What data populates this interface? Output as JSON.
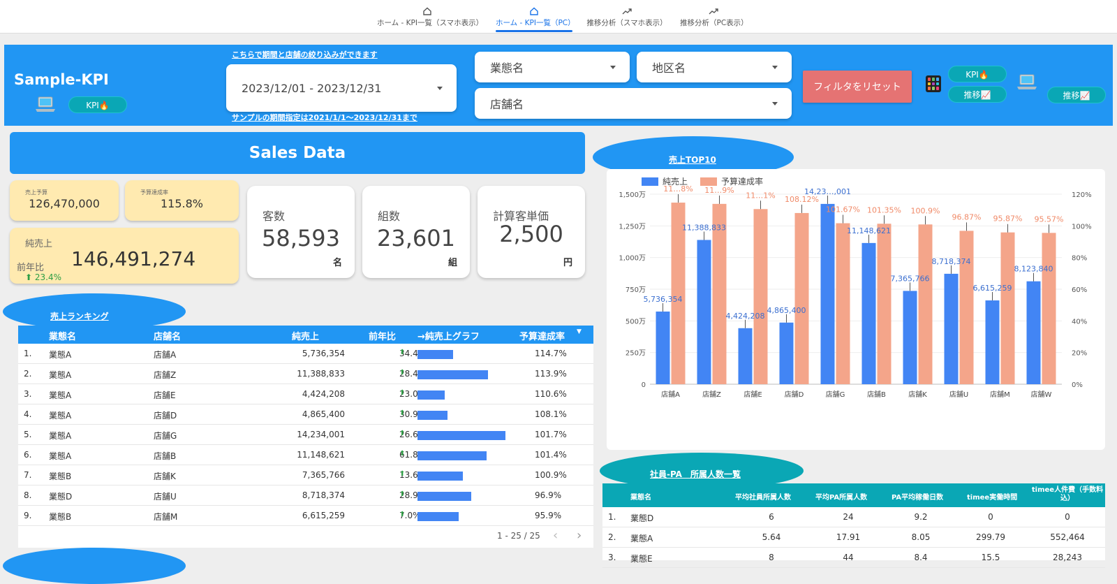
{
  "nav": {
    "tabs": [
      {
        "label": "ホーム - KPI一覧（スマホ表示）",
        "icon": "home-icon"
      },
      {
        "label": "ホーム - KPI一覧（PC）",
        "icon": "home-icon",
        "active": true
      },
      {
        "label": "推移分析（スマホ表示）",
        "icon": "trending-up-icon"
      },
      {
        "label": "推移分析（PC表示）",
        "icon": "trending-up-icon"
      }
    ]
  },
  "header": {
    "title": "Sample-KPI",
    "kpi_label": "KPI🔥",
    "trend_label": "推移📈",
    "filter_hint": "こちらで期間と店舗の絞り込みができます",
    "period_note": "サンプルの期間指定は2021/1/1〜2023/12/31まで",
    "date_range": "2023/12/01 - 2023/12/31",
    "business_placeholder": "業態名",
    "region_placeholder": "地区名",
    "store_placeholder": "店舗名",
    "reset_label": "フィルタをリセット",
    "colors": {
      "header_bg": "#2196f3",
      "accent_teal": "#0aa7b5",
      "reset_bg": "#e57373"
    }
  },
  "sales": {
    "banner": "Sales Data",
    "budget_label": "売上予算",
    "budget_value": "126,470,000",
    "achieve_label": "予算達成率",
    "achieve_value": "115.8%",
    "net_label": "純売上",
    "yoy_label": "前年比",
    "net_value": "146,491,274",
    "yoy_value": "23.4%",
    "customers": {
      "label": "客数",
      "value": "58,593",
      "unit": "名"
    },
    "groups": {
      "label": "組数",
      "value": "23,601",
      "unit": "組"
    },
    "unit_price": {
      "label": "計算客単価",
      "value": "2,500",
      "unit": "円"
    }
  },
  "ranking": {
    "title": "売上ランキング",
    "headers": [
      "業態名",
      "店舗名",
      "純売上",
      "前年比",
      "→純売上グラフ",
      "予算達成率"
    ],
    "rows": [
      {
        "no": "1.",
        "biz": "業態A",
        "store": "店舗A",
        "sales": "5,736,354",
        "yoy": "34.4%",
        "bar": 5736354,
        "rate": "114.7%"
      },
      {
        "no": "2.",
        "biz": "業態A",
        "store": "店舗Z",
        "sales": "11,388,833",
        "yoy": "28.4%",
        "bar": 11388833,
        "rate": "113.9%"
      },
      {
        "no": "3.",
        "biz": "業態A",
        "store": "店舗E",
        "sales": "4,424,208",
        "yoy": "23.0%",
        "bar": 4424208,
        "rate": "110.6%"
      },
      {
        "no": "4.",
        "biz": "業態A",
        "store": "店舗D",
        "sales": "4,865,400",
        "yoy": "30.9%",
        "bar": 4865400,
        "rate": "108.1%"
      },
      {
        "no": "5.",
        "biz": "業態A",
        "store": "店舗G",
        "sales": "14,234,001",
        "yoy": "26.6%",
        "bar": 14234001,
        "rate": "101.7%"
      },
      {
        "no": "6.",
        "biz": "業態A",
        "store": "店舗B",
        "sales": "11,148,621",
        "yoy": "61.8%",
        "bar": 11148621,
        "rate": "101.4%"
      },
      {
        "no": "7.",
        "biz": "業態B",
        "store": "店舗K",
        "sales": "7,365,766",
        "yoy": "13.6%",
        "bar": 7365766,
        "rate": "100.9%"
      },
      {
        "no": "8.",
        "biz": "業態D",
        "store": "店舗U",
        "sales": "8,718,374",
        "yoy": "28.9%",
        "bar": 8718374,
        "rate": "96.9%"
      },
      {
        "no": "9.",
        "biz": "業態B",
        "store": "店舗M",
        "sales": "6,615,259",
        "yoy": "7.0%",
        "bar": 6615259,
        "rate": "95.9%"
      }
    ],
    "pager": "1 - 25 / 25"
  },
  "top10": {
    "title": "売上TOP10"
  },
  "chart_data": {
    "type": "bar",
    "categories": [
      "店舗A",
      "店舗Z",
      "店舗E",
      "店舗D",
      "店舗G",
      "店舗B",
      "店舗K",
      "店舗U",
      "店舗M",
      "店舗W"
    ],
    "series": [
      {
        "name": "純売上",
        "axis": "left",
        "color": "#4285f4",
        "values": [
          5736354,
          11388833,
          4424208,
          4865400,
          14234001,
          11148621,
          7365766,
          8718374,
          6615259,
          8123840
        ],
        "labels": [
          "5,736,354",
          "11,388,833",
          "4,424,208",
          "4,865,400",
          "14,23…,001",
          "11,148,621",
          "7,365,766",
          "8,718,374",
          "6,615,259",
          "8,123,840"
        ]
      },
      {
        "name": "予算達成率",
        "axis": "right",
        "color": "#f4a58a",
        "values": [
          114.68,
          113.89,
          110.61,
          108.12,
          101.67,
          101.35,
          100.9,
          96.87,
          95.87,
          95.57
        ],
        "labels": [
          "11…8%",
          "11…9%",
          "11…1%",
          "108.12%",
          "101.67%",
          "101.35%",
          "100.9%",
          "96.87%",
          "95.87%",
          "95.57%"
        ]
      }
    ],
    "y_left_ticks": [
      "0",
      "250万",
      "500万",
      "750万",
      "1,000万",
      "1,250万",
      "1,500万"
    ],
    "y_left_max": 15000000,
    "y_right_ticks": [
      "0%",
      "20%",
      "40%",
      "60%",
      "80%",
      "100%",
      "120%"
    ],
    "y_right_max": 120,
    "legend": "top-left",
    "grid": true
  },
  "staff": {
    "title": "社員-PA　所属人数一覧",
    "headers": [
      "業態名",
      "平均社員所属人数",
      "平均PA所属人数",
      "PA平均稼働日数",
      "timee実働時間",
      "timee人件費（手数料込）"
    ],
    "rows": [
      {
        "no": "1.",
        "biz": "業態D",
        "a": "6",
        "b": "24",
        "c": "9.2",
        "d": "0",
        "e": "0"
      },
      {
        "no": "2.",
        "biz": "業態A",
        "a": "5.64",
        "b": "17.91",
        "c": "8.05",
        "d": "299.79",
        "e": "552,464"
      },
      {
        "no": "3.",
        "biz": "業態E",
        "a": "8",
        "b": "44",
        "c": "8.4",
        "d": "15.5",
        "e": "28,243"
      }
    ]
  }
}
